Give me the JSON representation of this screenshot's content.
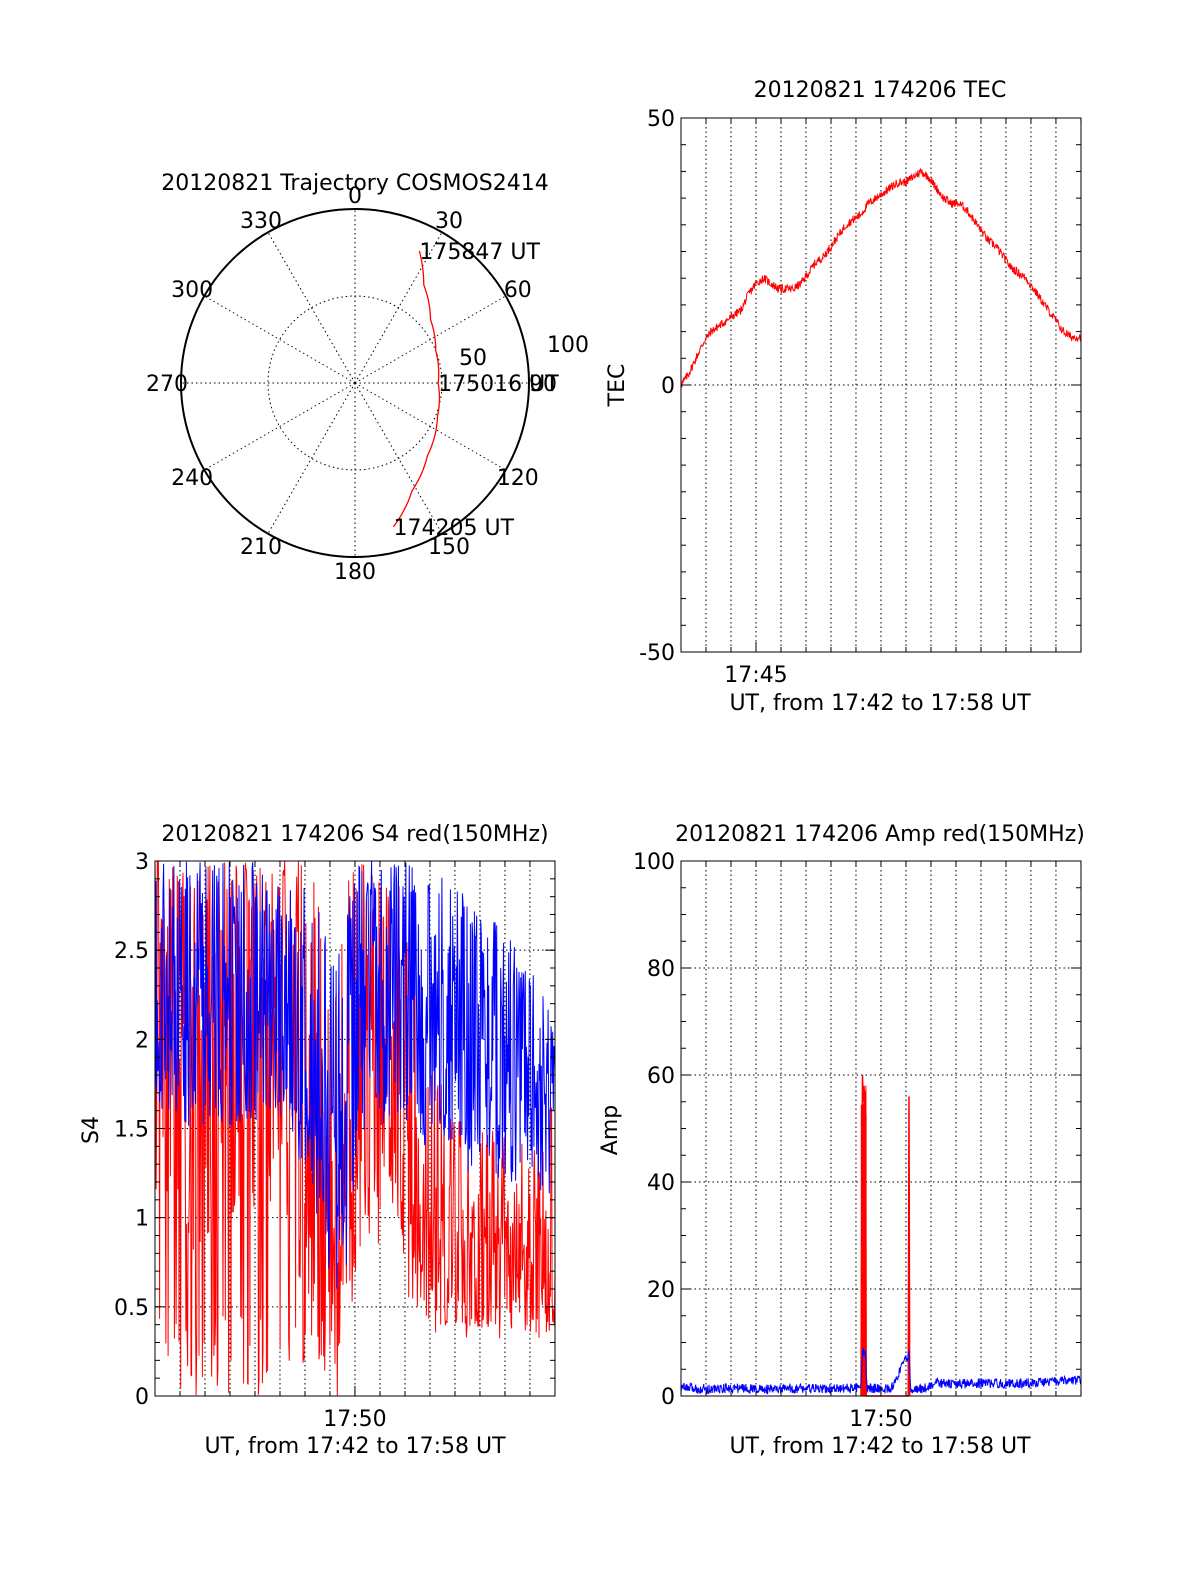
{
  "colors": {
    "red": "#ff0000",
    "blue": "#0000ff",
    "axis": "#000000",
    "grid": "#000000"
  },
  "chart_data": [
    {
      "type": "polar",
      "title": "20120821 Trajectory COSMOS2414",
      "angle_ticks": [
        "0",
        "30",
        "60",
        "90",
        "120",
        "150",
        "180",
        "210",
        "240",
        "270",
        "300",
        "330"
      ],
      "radial_ticks": [
        "50",
        "100"
      ],
      "series": [
        {
          "color": "red",
          "points": [
            {
              "az": 165,
              "el": 13
            },
            {
              "az": 152,
              "el": 27
            },
            {
              "az": 135,
              "el": 37
            },
            {
              "az": 112,
              "el": 44
            },
            {
              "az": 90,
              "el": 47
            },
            {
              "az": 68,
              "el": 45
            },
            {
              "az": 50,
              "el": 39
            },
            {
              "az": 35,
              "el": 28
            },
            {
              "az": 26,
              "el": 14
            }
          ]
        }
      ],
      "annotations": [
        {
          "text": "175847 UT",
          "az": 26,
          "el": 14
        },
        {
          "text": "175016 UT",
          "az": 90,
          "el": 47
        },
        {
          "text": "174205 UT",
          "az": 165,
          "el": 13
        }
      ]
    },
    {
      "type": "line",
      "title": "20120821 174206 TEC",
      "xlabel": "UT, from 17:42 to 17:58 UT",
      "ylabel": "TEC",
      "xlim": [
        17.7,
        17.9667
      ],
      "ylim": [
        -50,
        50
      ],
      "yticks": [
        "50",
        "0",
        "-50"
      ],
      "xticks": [
        {
          "label": "17:45",
          "value": 17.75
        }
      ],
      "series": [
        {
          "color": "red",
          "x": [
            17.7,
            17.705,
            17.71,
            17.715,
            17.72,
            17.725,
            17.73,
            17.735,
            17.74,
            17.745,
            17.75,
            17.755,
            17.76,
            17.765,
            17.77,
            17.775,
            17.78,
            17.785,
            17.79,
            17.795,
            17.8,
            17.805,
            17.81,
            17.815,
            17.82,
            17.825,
            17.83,
            17.835,
            17.84,
            17.845,
            17.85,
            17.855,
            17.86,
            17.865,
            17.87,
            17.875,
            17.88,
            17.885,
            17.89,
            17.895,
            17.9,
            17.905,
            17.91,
            17.915,
            17.92,
            17.925,
            17.93,
            17.935,
            17.94,
            17.945,
            17.95,
            17.955,
            17.96,
            17.9667
          ],
          "values": [
            0,
            2,
            5,
            8,
            10,
            11,
            12,
            13,
            14,
            17,
            19,
            20,
            19,
            18,
            18,
            18,
            19,
            21,
            23,
            24,
            26,
            28,
            30,
            31,
            32,
            34,
            35,
            36,
            37,
            38,
            38,
            39,
            40,
            39,
            37,
            35,
            34,
            34,
            33,
            31,
            29,
            27,
            26,
            24,
            22,
            21,
            20,
            18,
            16,
            14,
            12,
            10,
            9,
            9
          ]
        }
      ]
    },
    {
      "type": "line",
      "title": "20120821 174206 S4 red(150MHz)",
      "xlabel": "UT, from 17:42 to 17:58 UT",
      "ylabel": "S4",
      "xlim": [
        17.7,
        17.9667
      ],
      "ylim": [
        0,
        3
      ],
      "yticks": [
        "0",
        "0.5",
        "1",
        "1.5",
        "2",
        "2.5",
        "3"
      ],
      "xticks": [
        {
          "label": "17:50",
          "value": 17.8333
        }
      ],
      "series": [
        {
          "name": "",
          "color": "red",
          "x": [
            17.7,
            17.72,
            17.74,
            17.76,
            17.78,
            17.79,
            17.8,
            17.81,
            17.82,
            17.83,
            17.84,
            17.85,
            17.86,
            17.87,
            17.88,
            17.89,
            17.9,
            17.91,
            17.92,
            17.93,
            17.94,
            17.95,
            17.96,
            17.9667
          ],
          "values": [
            2.2,
            1.8,
            2.0,
            1.9,
            2.1,
            1.9,
            1.5,
            1.0,
            0.6,
            1.2,
            1.9,
            1.8,
            1.9,
            1.1,
            0.9,
            0.8,
            0.8,
            0.7,
            0.8,
            0.7,
            0.9,
            0.8,
            0.7,
            0.9
          ],
          "min": [
            0,
            0,
            0,
            0,
            0,
            0,
            0.1,
            0.1,
            0.1,
            0.6,
            0.9,
            0.8,
            1.0,
            0.7,
            0.6,
            0.4,
            0.4,
            0.3,
            0.4,
            0.3,
            0.4,
            0.3,
            0.3,
            0.4
          ],
          "max": [
            3,
            3,
            3,
            3,
            3,
            3,
            3,
            2.8,
            2.2,
            3,
            3,
            3,
            3,
            2.6,
            1.9,
            1.8,
            1.6,
            1.5,
            1.6,
            1.4,
            1.6,
            1.4,
            1.4,
            1.8
          ]
        },
        {
          "name": "",
          "color": "blue",
          "x": [
            17.7,
            17.72,
            17.74,
            17.76,
            17.78,
            17.79,
            17.8,
            17.81,
            17.82,
            17.83,
            17.84,
            17.85,
            17.86,
            17.87,
            17.88,
            17.89,
            17.9,
            17.91,
            17.92,
            17.93,
            17.94,
            17.95,
            17.96,
            17.9667
          ],
          "values": [
            2.3,
            2.2,
            2.3,
            2.2,
            2.4,
            2.2,
            2.0,
            1.7,
            1.4,
            2.0,
            2.2,
            2.3,
            2.4,
            2.2,
            2.1,
            2.0,
            2.0,
            1.9,
            2.0,
            1.8,
            1.9,
            1.8,
            1.7,
            1.7
          ],
          "min": [
            1.6,
            1.5,
            1.5,
            1.5,
            1.6,
            1.5,
            1.2,
            0.9,
            0.5,
            0.8,
            1.5,
            1.5,
            1.6,
            1.5,
            1.4,
            1.4,
            1.3,
            1.2,
            1.3,
            1.2,
            1.2,
            1.2,
            1.1,
            1.0
          ],
          "max": [
            3,
            3,
            3,
            3,
            3,
            3,
            3,
            2.7,
            2.4,
            3,
            3,
            3,
            3,
            3,
            3,
            3,
            2.9,
            2.8,
            2.8,
            2.6,
            2.6,
            2.4,
            2.3,
            2.0
          ]
        }
      ]
    },
    {
      "type": "line",
      "title": "20120821 174206 Amp red(150MHz)",
      "xlabel": "UT, from 17:42 to 17:58 UT",
      "ylabel": "Amp",
      "xlim": [
        17.7,
        17.9667
      ],
      "ylim": [
        0,
        100
      ],
      "yticks": [
        "0",
        "20",
        "40",
        "60",
        "80",
        "100"
      ],
      "xticks": [
        {
          "label": "17:50",
          "value": 17.8333
        }
      ],
      "series": [
        {
          "color": "red",
          "x": [
            17.82,
            17.8205,
            17.821,
            17.8215,
            17.822,
            17.8225,
            17.823,
            17.8235,
            17.8515,
            17.852,
            17.8525
          ],
          "values": [
            0,
            35,
            60,
            55,
            58,
            52,
            57,
            0,
            0,
            56,
            0
          ]
        },
        {
          "color": "blue",
          "x": [
            17.7,
            17.72,
            17.74,
            17.76,
            17.78,
            17.8,
            17.82,
            17.821,
            17.823,
            17.824,
            17.84,
            17.852,
            17.853,
            17.86,
            17.87,
            17.88,
            17.9,
            17.92,
            17.94,
            17.96,
            17.9667
          ],
          "values": [
            1.5,
            1.3,
            1.5,
            1.2,
            1.4,
            1.3,
            1.5,
            8,
            8,
            1.5,
            1.3,
            8,
            1.5,
            1.2,
            2.5,
            2.2,
            2.4,
            2.3,
            2.6,
            2.8,
            3
          ]
        }
      ]
    }
  ]
}
